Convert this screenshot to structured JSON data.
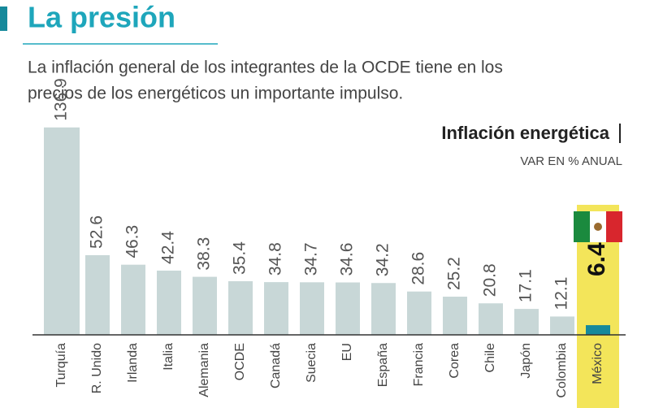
{
  "header": {
    "title": "La presión",
    "text_lines": [
      "La inflación general de los integrantes de la OCDE tiene en los",
      "precios de los energéticos un importante impulso."
    ]
  },
  "chart_data": {
    "type": "bar",
    "title": "Inflación energética",
    "subtitle": "VAR EN % ANUAL",
    "categories": [
      "Turquía",
      "R. Unido",
      "Irlanda",
      "Italia",
      "Alemania",
      "OCDE",
      "Canadá",
      "Suecia",
      "EU",
      "España",
      "Francia",
      "Corea",
      "Chile",
      "Japón",
      "Colombia",
      "México"
    ],
    "values": [
      136.9,
      52.6,
      46.3,
      42.4,
      38.3,
      35.4,
      34.8,
      34.7,
      34.6,
      34.2,
      28.6,
      25.2,
      20.8,
      17.1,
      12.1,
      6.4
    ],
    "color": "#c8d7d7",
    "highlight_index": 15,
    "highlight_color": "#f3e55a",
    "highlight_bar_color": "#16899b",
    "ylim": [
      0,
      140
    ]
  }
}
